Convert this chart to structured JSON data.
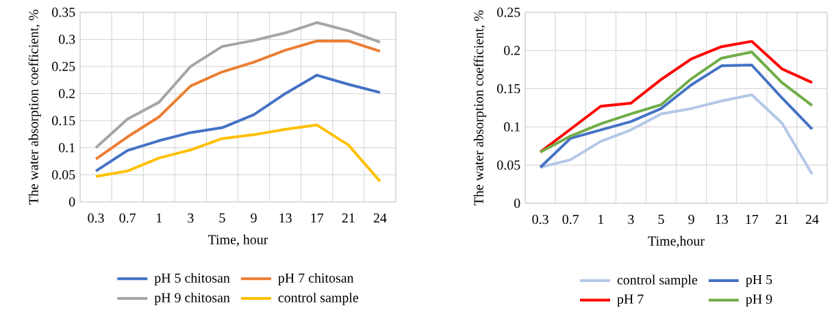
{
  "chart_data": [
    {
      "type": "line",
      "xlabel": "Time, hour",
      "ylabel": "The water absorption coefficient, %",
      "categories": [
        "0.3",
        "0.7",
        "1",
        "3",
        "5",
        "9",
        "13",
        "17",
        "21",
        "24"
      ],
      "ylim": [
        0,
        0.35
      ],
      "yticks": [
        0,
        0.05,
        0.1,
        0.15,
        0.2,
        0.25,
        0.3,
        0.35
      ],
      "grid": true,
      "legend": "bottom",
      "marker": "none",
      "line_style": "solid",
      "series": [
        {
          "name": "pH 5 chitosan",
          "color": "#4472c4",
          "values": [
            0.057,
            0.095,
            0.113,
            0.128,
            0.137,
            0.161,
            0.2,
            0.234,
            0.217,
            0.202
          ]
        },
        {
          "name": "pH 7 chitosan",
          "color": "#ed7d31",
          "values": [
            0.079,
            0.12,
            0.157,
            0.214,
            0.24,
            0.258,
            0.28,
            0.297,
            0.297,
            0.278
          ]
        },
        {
          "name": "pH 9 chitosan",
          "color": "#a5a5a5",
          "values": [
            0.1,
            0.153,
            0.184,
            0.25,
            0.287,
            0.298,
            0.312,
            0.331,
            0.316,
            0.295
          ]
        },
        {
          "name": "control sample",
          "color": "#ffc000",
          "values": [
            0.047,
            0.057,
            0.081,
            0.096,
            0.117,
            0.124,
            0.134,
            0.142,
            0.105,
            0.038
          ]
        }
      ]
    },
    {
      "type": "line",
      "xlabel": "Time,hour",
      "ylabel": "The water absorption coefficient, %",
      "categories": [
        "0.3",
        "0.7",
        "1",
        "3",
        "5",
        "9",
        "13",
        "17",
        "21",
        "24"
      ],
      "ylim": [
        0,
        0.25
      ],
      "yticks": [
        0,
        0.05,
        0.1,
        0.15,
        0.2,
        0.25
      ],
      "grid": true,
      "legend": "bottom",
      "marker": "none",
      "line_style": "solid",
      "series": [
        {
          "name": "control sample",
          "color": "#b4c7e7",
          "values": [
            0.047,
            0.057,
            0.081,
            0.096,
            0.117,
            0.124,
            0.134,
            0.142,
            0.105,
            0.038
          ]
        },
        {
          "name": "pH 5",
          "color": "#4472c4",
          "values": [
            0.047,
            0.085,
            0.096,
            0.107,
            0.124,
            0.155,
            0.18,
            0.181,
            0.138,
            0.097
          ]
        },
        {
          "name": "pH 7",
          "color": "#ff0000",
          "values": [
            0.067,
            0.097,
            0.127,
            0.131,
            0.162,
            0.189,
            0.205,
            0.212,
            0.176,
            0.158
          ]
        },
        {
          "name": "pH 9",
          "color": "#70ad47",
          "values": [
            0.067,
            0.088,
            0.104,
            0.117,
            0.129,
            0.163,
            0.19,
            0.198,
            0.158,
            0.128
          ]
        }
      ]
    }
  ]
}
